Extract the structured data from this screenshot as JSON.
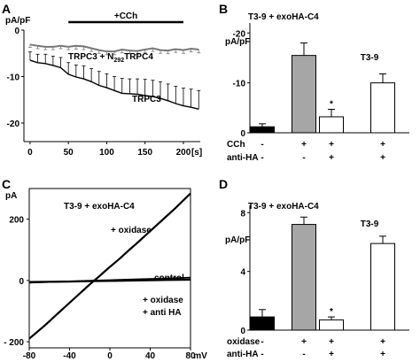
{
  "chart_data": [
    {
      "panel": "A",
      "type": "line",
      "ylabel": "pA/pF",
      "stim_label": "+CCh",
      "stim_range_s": [
        50,
        200
      ],
      "xlim": [
        -8,
        222
      ],
      "ylim": [
        -24,
        0
      ],
      "x_ticks": [
        0,
        50,
        100,
        150,
        200
      ],
      "x_tick_labels": [
        "0",
        "50",
        "100",
        "150",
        "200"
      ],
      "x_unit_label": "[s]",
      "y_ticks": [
        0,
        -10,
        -20
      ],
      "y_tick_labels": [
        "0",
        "-10",
        "-20"
      ],
      "series": [
        {
          "name_part1": "TRPC3 + N",
          "name_sub": "292",
          "name_part2": "TRPC4",
          "x": [
            0,
            10,
            20,
            30,
            40,
            50,
            60,
            70,
            80,
            90,
            100,
            110,
            120,
            130,
            140,
            150,
            160,
            170,
            180,
            190,
            200,
            210,
            220
          ],
          "y": [
            -3.1,
            -3.4,
            -3.6,
            -3.6,
            -3.4,
            -3.6,
            -3.4,
            -3.5,
            -3.9,
            -4.3,
            -4.6,
            -4.6,
            -4.2,
            -4.4,
            -4.5,
            -4.2,
            -3.9,
            -4.3,
            -4.4,
            -4.1,
            -4.3,
            -4.0,
            -4.2
          ],
          "err": [
            0.6,
            0.6,
            0.6,
            0.6,
            0.6,
            0.6,
            0.7,
            0.7,
            0.7,
            0.7,
            0.7,
            0.7,
            0.7,
            0.7,
            0.7,
            0.7,
            0.7,
            0.7,
            0.7,
            0.7,
            0.7,
            0.7,
            0.7
          ]
        },
        {
          "name": "TRPC3",
          "x": [
            0,
            10,
            20,
            30,
            40,
            50,
            60,
            70,
            80,
            90,
            100,
            110,
            120,
            130,
            140,
            150,
            160,
            170,
            180,
            190,
            200,
            210,
            220
          ],
          "y": [
            -6.5,
            -7.0,
            -7.2,
            -7.6,
            -8.1,
            -9.5,
            -10.1,
            -10.5,
            -11.1,
            -11.9,
            -12.4,
            -13.0,
            -13.6,
            -13.7,
            -13.8,
            -14.1,
            -14.3,
            -14.7,
            -15.2,
            -15.8,
            -16.3,
            -16.6,
            -17.0
          ],
          "err": [
            1.8,
            1.8,
            2.0,
            2.0,
            2.2,
            2.5,
            2.6,
            2.8,
            2.8,
            3.0,
            3.0,
            3.0,
            3.2,
            3.2,
            3.3,
            3.5,
            3.5,
            3.6,
            3.6,
            3.7,
            3.8,
            3.9,
            4.0
          ]
        }
      ]
    },
    {
      "panel": "B",
      "type": "bar",
      "title": "T3-9 + exoHA-C4",
      "ylabel": "pA/pF",
      "ylim": [
        0,
        -22
      ],
      "y_ticks": [
        0,
        -10,
        -20
      ],
      "y_tick_labels": [
        "0",
        "-10",
        "-20"
      ],
      "group2_label": "T3-9",
      "values": [
        -1.2,
        -15.5,
        -3.2,
        -10.0
      ],
      "errors": [
        0.6,
        2.5,
        1.5,
        1.8
      ],
      "colors": [
        "#000000",
        "#a6a6a6",
        "#ffffff",
        "#ffffff"
      ],
      "significance": [
        "",
        "",
        "*",
        ""
      ],
      "row_labels": [
        "CCh",
        "anti-HA"
      ],
      "condition_rows": [
        [
          "-",
          "+",
          "+",
          "+"
        ],
        [
          "-",
          "-",
          "+",
          "+"
        ]
      ]
    },
    {
      "panel": "C",
      "type": "line",
      "title": "T3-9 + exoHA-C4",
      "ylabel": "pA",
      "x_unit_label": "mV",
      "xlim": [
        -80,
        80
      ],
      "ylim": [
        -220,
        300
      ],
      "x_ticks": [
        -80,
        -40,
        0,
        40,
        80
      ],
      "x_tick_labels": [
        "-80",
        "-40",
        "0",
        "40",
        "80"
      ],
      "y_ticks": [
        -200,
        0,
        200
      ],
      "y_tick_labels": [
        "- 200",
        "0",
        "200"
      ],
      "annotations": {
        "oxidase": "+ oxidase",
        "control": "control",
        "oxidase_antiha_1": "+ oxidase",
        "oxidase_antiha_2": "+ anti HA"
      },
      "series": [
        {
          "name": "+ oxidase",
          "x": [
            -80,
            -75,
            -70,
            -65,
            -60,
            -55,
            -50,
            -45,
            -40,
            -35,
            -30,
            -25,
            -20,
            -15,
            -10,
            -5,
            0,
            5,
            10,
            15,
            20,
            25,
            30,
            35,
            40,
            45,
            50,
            55,
            60,
            65,
            70,
            75,
            80
          ],
          "y": [
            -190,
            -176,
            -162,
            -148,
            -133,
            -118,
            -103,
            -88,
            -73,
            -58,
            -43,
            -28,
            -13,
            1,
            15,
            30,
            44,
            58,
            72,
            87,
            102,
            116,
            131,
            146,
            161,
            176,
            191,
            206,
            221,
            236,
            252,
            268,
            284
          ]
        },
        {
          "name": "control",
          "x": [
            -80,
            -60,
            -40,
            -20,
            0,
            20,
            40,
            60,
            80
          ],
          "y": [
            -5,
            -4.5,
            -3.5,
            -2.5,
            -1.5,
            -0.5,
            0.5,
            1.5,
            2.5
          ]
        },
        {
          "name": "+ oxidase + anti HA",
          "x": [
            -80,
            -60,
            -40,
            -20,
            0,
            20,
            40,
            60,
            80
          ],
          "y": [
            -7,
            -5,
            -3,
            -1,
            1,
            3,
            5,
            7,
            9
          ]
        }
      ]
    },
    {
      "panel": "D",
      "type": "bar",
      "title": "T3-9 + exoHA-C4",
      "ylabel": "pA/pF",
      "ylim": [
        0,
        8.5
      ],
      "y_ticks": [
        0,
        4,
        8
      ],
      "y_tick_labels": [
        "0",
        "4",
        "8"
      ],
      "group2_label": "T3-9",
      "values": [
        0.9,
        7.2,
        0.7,
        5.9
      ],
      "errors": [
        0.5,
        0.5,
        0.2,
        0.5
      ],
      "colors": [
        "#000000",
        "#a6a6a6",
        "#ffffff",
        "#ffffff"
      ],
      "significance": [
        "",
        "",
        "*",
        ""
      ],
      "row_labels": [
        "oxidase",
        "anti-HA"
      ],
      "condition_rows": [
        [
          "-",
          "+",
          "+",
          "+"
        ],
        [
          "-",
          "-",
          "+",
          "+"
        ]
      ]
    }
  ]
}
